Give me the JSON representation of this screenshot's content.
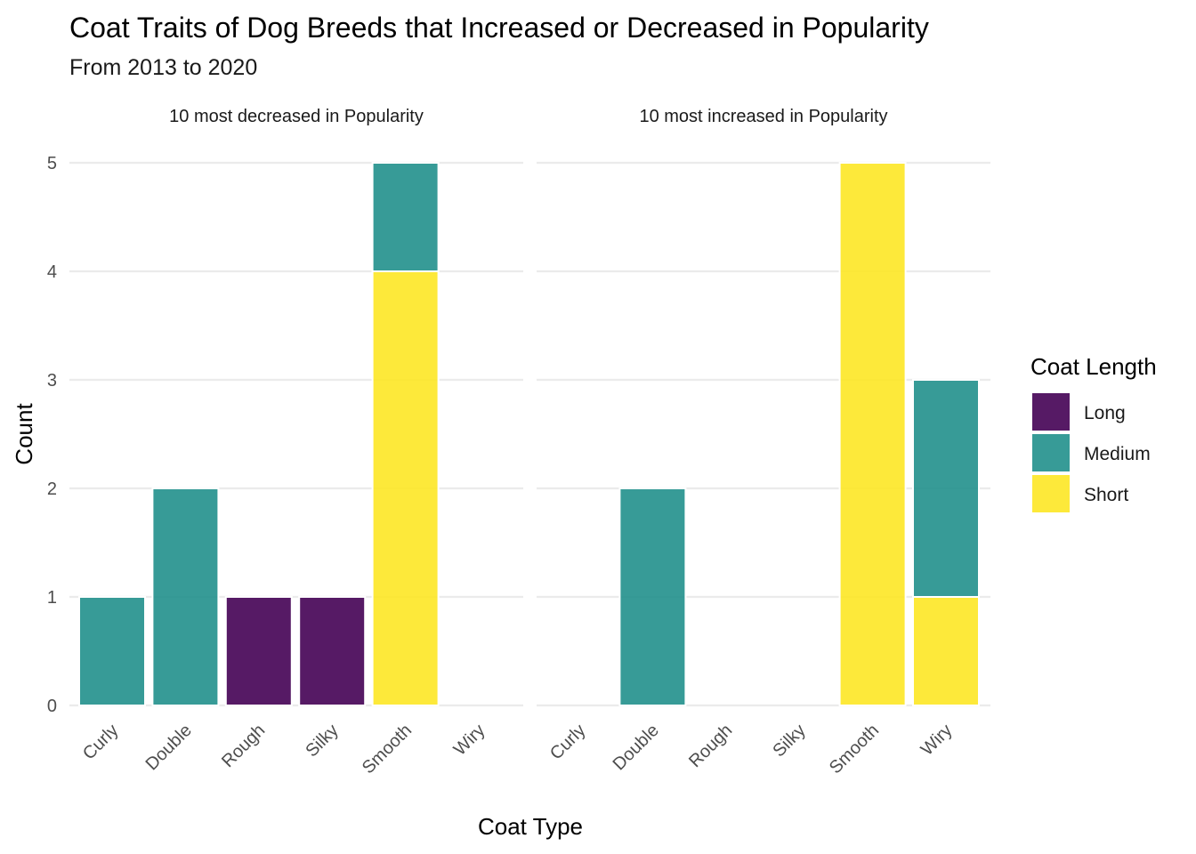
{
  "chart_data": {
    "type": "bar",
    "stacked": true,
    "title": "Coat Traits of Dog Breeds that Increased or Decreased in Popularity",
    "subtitle": "From 2013 to 2020",
    "xlabel": "Coat Type",
    "ylabel": "Count",
    "ylim": [
      0,
      5
    ],
    "yticks": [
      "0",
      "1",
      "2",
      "3",
      "4",
      "5"
    ],
    "grid": true,
    "legend": {
      "title": "Coat Length",
      "position": "right",
      "entries": [
        {
          "name": "Long",
          "color": "#440154"
        },
        {
          "name": "Medium",
          "color": "#21908C"
        },
        {
          "name": "Short",
          "color": "#FDE725"
        }
      ]
    },
    "categories": [
      "Curly",
      "Double",
      "Rough",
      "Silky",
      "Smooth",
      "Wiry"
    ],
    "panels": [
      {
        "label": "10 most decreased in Popularity",
        "series": [
          {
            "name": "Long",
            "values": [
              0,
              0,
              1,
              1,
              0,
              0
            ]
          },
          {
            "name": "Medium",
            "values": [
              1,
              2,
              0,
              0,
              1,
              0
            ]
          },
          {
            "name": "Short",
            "values": [
              0,
              0,
              0,
              0,
              4,
              0
            ]
          }
        ]
      },
      {
        "label": "10 most increased in Popularity",
        "series": [
          {
            "name": "Long",
            "values": [
              0,
              0,
              0,
              0,
              0,
              0
            ]
          },
          {
            "name": "Medium",
            "values": [
              0,
              2,
              0,
              0,
              0,
              2
            ]
          },
          {
            "name": "Short",
            "values": [
              0,
              0,
              0,
              0,
              5,
              1
            ]
          }
        ]
      }
    ]
  }
}
